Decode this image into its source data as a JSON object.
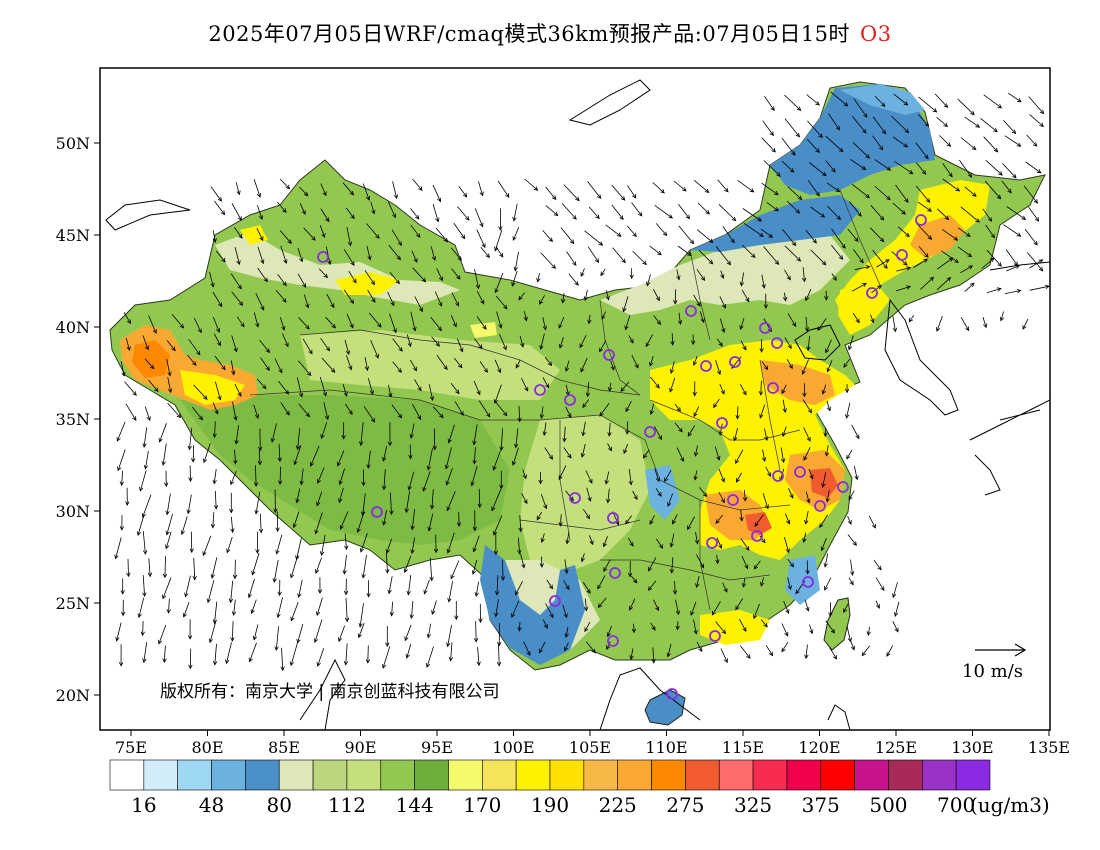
{
  "title": {
    "main": "2025年07月05日WRF/cmaq模式36km预报产品:07月05日15时",
    "pollutant": "O3",
    "pollutant_color": "#e02020"
  },
  "axes": {
    "lon_ticks": [
      "75E",
      "80E",
      "85E",
      "90E",
      "95E",
      "100E",
      "105E",
      "110E",
      "115E",
      "120E",
      "125E",
      "130E",
      "135E"
    ],
    "lat_ticks": [
      "50N",
      "45N",
      "40N",
      "35N",
      "30N",
      "25N",
      "20N"
    ]
  },
  "wind_scale": {
    "label": "10 m/s"
  },
  "copyright": {
    "text": "版权所有：南京大学 | 南京创蓝科技有限公司"
  },
  "colorbar": {
    "colors": [
      "#ffffff",
      "#d2ecfa",
      "#9fd8f5",
      "#6cb2e0",
      "#4a90c8",
      "#dde7b8",
      "#bbd67c",
      "#c4e07c",
      "#93c850",
      "#6eae3a",
      "#f3fb6c",
      "#f5e35a",
      "#fff200",
      "#ffe000",
      "#f8b848",
      "#f9a832",
      "#fe8800",
      "#f05c30",
      "#ff6b6b",
      "#f82c50",
      "#f0004a",
      "#ff0000",
      "#c8148c",
      "#a82a5a",
      "#9a32c8",
      "#8a2ae2"
    ],
    "labels": [
      "16",
      "48",
      "80",
      "112",
      "144",
      "170",
      "190",
      "225",
      "275",
      "325",
      "375",
      "500",
      "700"
    ],
    "unit": "(ug/m3)"
  },
  "legend_colors": {
    "water_blue": "#4a8ec8",
    "low_green": "#93c850",
    "high_orange": "#f9a832",
    "city_marker": "#8a2ae2"
  }
}
